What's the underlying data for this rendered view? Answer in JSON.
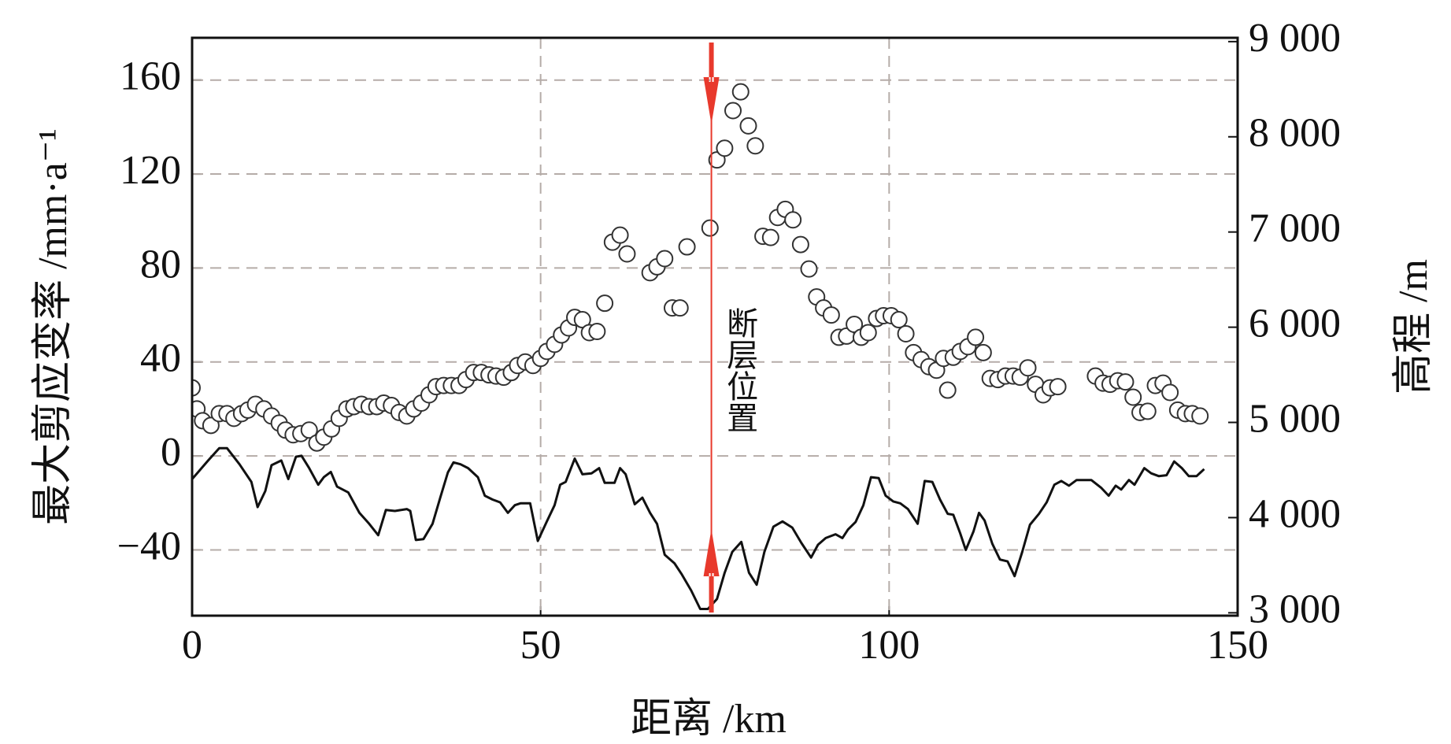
{
  "chart_data": {
    "type": "scatter",
    "xlabel": "距离 /km",
    "ylabel": "最大剪应变率 /mm·a⁻¹",
    "y2label": "高程 /m",
    "xlim": [
      0,
      150
    ],
    "xticks": [
      0,
      50,
      100,
      150
    ],
    "ylim": [
      -68,
      178
    ],
    "yticks": [
      {
        "value": -40,
        "label": "−40"
      },
      0,
      40,
      80,
      120,
      160
    ],
    "y2lim": [
      2970,
      9040
    ],
    "y2ticks": [
      {
        "value": 3000,
        "label": "3 000"
      },
      {
        "value": 4000,
        "label": "4 000"
      },
      {
        "value": 5000,
        "label": "5 000"
      },
      {
        "value": 6000,
        "label": "6 000"
      },
      {
        "value": 7000,
        "label": "7 000"
      },
      {
        "value": 8000,
        "label": "8 000"
      },
      {
        "value": 9000,
        "label": "9 000"
      }
    ],
    "grid": true,
    "annotations": [
      {
        "text": "断层位置",
        "x": 74.5,
        "color": "#e8392c"
      }
    ],
    "series": [
      {
        "type": "scatter",
        "color": "#333333",
        "x": [
          0,
          0.7,
          1.5,
          2.7,
          3.9,
          5,
          6,
          7.1,
          8,
          9.1,
          10.3,
          11.4,
          12.5,
          13.4,
          14.5,
          15.6,
          16.8,
          17.9,
          18.9,
          20,
          21.1,
          22.2,
          23.2,
          24.3,
          25.4,
          26.5,
          27.5,
          28.6,
          29.7,
          30.8,
          31.8,
          32.9,
          34,
          35,
          36.1,
          37.2,
          38.3,
          39.3,
          40.4,
          41.5,
          42.6,
          43.6,
          44.7,
          45.8,
          46.7,
          47.8,
          48.9,
          50,
          50.9,
          52,
          53,
          54,
          54.9,
          56,
          57,
          58.1,
          59.2,
          60.3,
          61.4,
          62.4,
          65.7,
          66.7,
          67.8,
          68.9,
          70,
          71,
          74.3,
          75.3,
          76.4,
          77.6,
          78.7,
          79.8,
          80.8,
          81.9,
          83,
          84,
          85.1,
          86.2,
          87.3,
          88.5,
          89.6,
          90.6,
          91.7,
          92.8,
          93.9,
          95,
          96,
          97,
          98.2,
          99.2,
          100.3,
          101.4,
          102.4,
          103.5,
          104.6,
          105.7,
          106.8,
          107.8,
          108.4,
          109.2,
          110.2,
          111.3,
          112.4,
          113.5,
          114.5,
          115.6,
          116.7,
          117.8,
          118.8,
          119.9,
          121,
          122.1,
          123.1,
          124.2,
          129.6,
          130.7,
          131.7,
          132.8,
          133.9,
          135,
          136,
          137.1,
          138.2,
          139.3,
          140.3,
          141.4,
          142.5,
          143.5,
          144.6
        ],
        "values": [
          29,
          20,
          15,
          13,
          18,
          18,
          16,
          18,
          19.5,
          22,
          20,
          17,
          14,
          11,
          9,
          9.5,
          11,
          5.5,
          8,
          11.5,
          16,
          20,
          21,
          22,
          21,
          21,
          22.5,
          21.5,
          18.5,
          17,
          20,
          22.5,
          26,
          29.5,
          30,
          30,
          30,
          32.5,
          35.5,
          35.5,
          34.5,
          34,
          33.5,
          35.5,
          38.5,
          40,
          38.5,
          41.5,
          44.5,
          47.5,
          51.5,
          54.5,
          59,
          58,
          52.5,
          53,
          65,
          91,
          94,
          86,
          78,
          80.5,
          84,
          63,
          63,
          89,
          97,
          126,
          131,
          147,
          155,
          140.5,
          132,
          93.5,
          93,
          101.5,
          105,
          100.5,
          90,
          79.6,
          67.7,
          63,
          60,
          50.5,
          51,
          56,
          50.5,
          52.5,
          58.5,
          59.7,
          59.7,
          58,
          52,
          44,
          41,
          38,
          36.5,
          41.5,
          28,
          42,
          44.5,
          46.5,
          50.5,
          44,
          33,
          32.5,
          34,
          34,
          33.5,
          37.5,
          30.5,
          26,
          29,
          29.5,
          34,
          31,
          30.5,
          32,
          31.5,
          25,
          18.5,
          19,
          30,
          31,
          27,
          19.5,
          18,
          18,
          17
        ]
      },
      {
        "type": "line",
        "axis": "y2",
        "color": "#111111",
        "x": [
          0,
          2.3,
          3.9,
          5,
          6.8,
          8.5,
          9.4,
          10.5,
          11.4,
          12.8,
          13.8,
          14.9,
          15.7,
          16.8,
          18.1,
          18.9,
          19.9,
          20.8,
          22.4,
          24,
          25.4,
          26.7,
          27.8,
          29.1,
          30.8,
          31.3,
          32.1,
          33.2,
          34.5,
          35.6,
          36.7,
          37.5,
          38.5,
          39.6,
          41,
          42,
          43.1,
          44.2,
          45.3,
          46.3,
          47.1,
          48.5,
          49.6,
          50.9,
          52,
          52.8,
          53.6,
          54.9,
          56,
          57.3,
          58.4,
          59.2,
          60.6,
          61.4,
          62.2,
          63.5,
          64.6,
          65.7,
          66.7,
          67.8,
          69.2,
          70.2,
          71.6,
          72.9,
          74,
          75.3,
          76.4,
          77.5,
          78.8,
          79.9,
          81,
          82.1,
          83.4,
          84.7,
          86.1,
          87.4,
          88.8,
          89.8,
          90.9,
          92.3,
          93.3,
          94.1,
          95.2,
          96.3,
          97.4,
          98.5,
          99.5,
          100.6,
          101.6,
          102.7,
          104.1,
          105.1,
          106.2,
          107.3,
          108.4,
          109.2,
          110.2,
          111,
          112.1,
          112.9,
          113.7,
          114.8,
          115.9,
          117,
          118,
          119.1,
          120.2,
          121.5,
          122.6,
          123.7,
          124.7,
          125.8,
          126.9,
          127.9,
          129,
          130.4,
          131.5,
          132.5,
          133.3,
          134.4,
          135.2,
          136.6,
          137.6,
          138.7,
          139.8,
          140.9,
          142,
          143,
          144.1,
          145.2
        ],
        "values": [
          4405,
          4600,
          4730,
          4730,
          4560,
          4375,
          4110,
          4280,
          4550,
          4600,
          4405,
          4640,
          4650,
          4520,
          4345,
          4425,
          4480,
          4325,
          4265,
          4050,
          3935,
          3815,
          4080,
          4070,
          4090,
          4070,
          3765,
          3775,
          3935,
          4210,
          4475,
          4580,
          4560,
          4520,
          4425,
          4230,
          4190,
          4160,
          4050,
          4130,
          4150,
          4150,
          3755,
          3960,
          4130,
          4345,
          4375,
          4620,
          4455,
          4465,
          4520,
          4365,
          4365,
          4520,
          4455,
          4140,
          4210,
          4050,
          3935,
          3610,
          3520,
          3410,
          3235,
          3040,
          3040,
          3145,
          3420,
          3640,
          3745,
          3420,
          3295,
          3640,
          3905,
          3960,
          3895,
          3735,
          3580,
          3715,
          3785,
          3825,
          3785,
          3875,
          3955,
          4130,
          4425,
          4415,
          4230,
          4170,
          4150,
          4090,
          3935,
          4385,
          4375,
          4190,
          4040,
          4030,
          3835,
          3660,
          3855,
          4050,
          3970,
          3725,
          3560,
          3540,
          3385,
          3640,
          3925,
          4040,
          4160,
          4345,
          4385,
          4335,
          4395,
          4395,
          4395,
          4315,
          4230,
          4335,
          4295,
          4395,
          4345,
          4520,
          4465,
          4435,
          4445,
          4590,
          4520,
          4435,
          4435,
          4510
        ]
      }
    ]
  }
}
